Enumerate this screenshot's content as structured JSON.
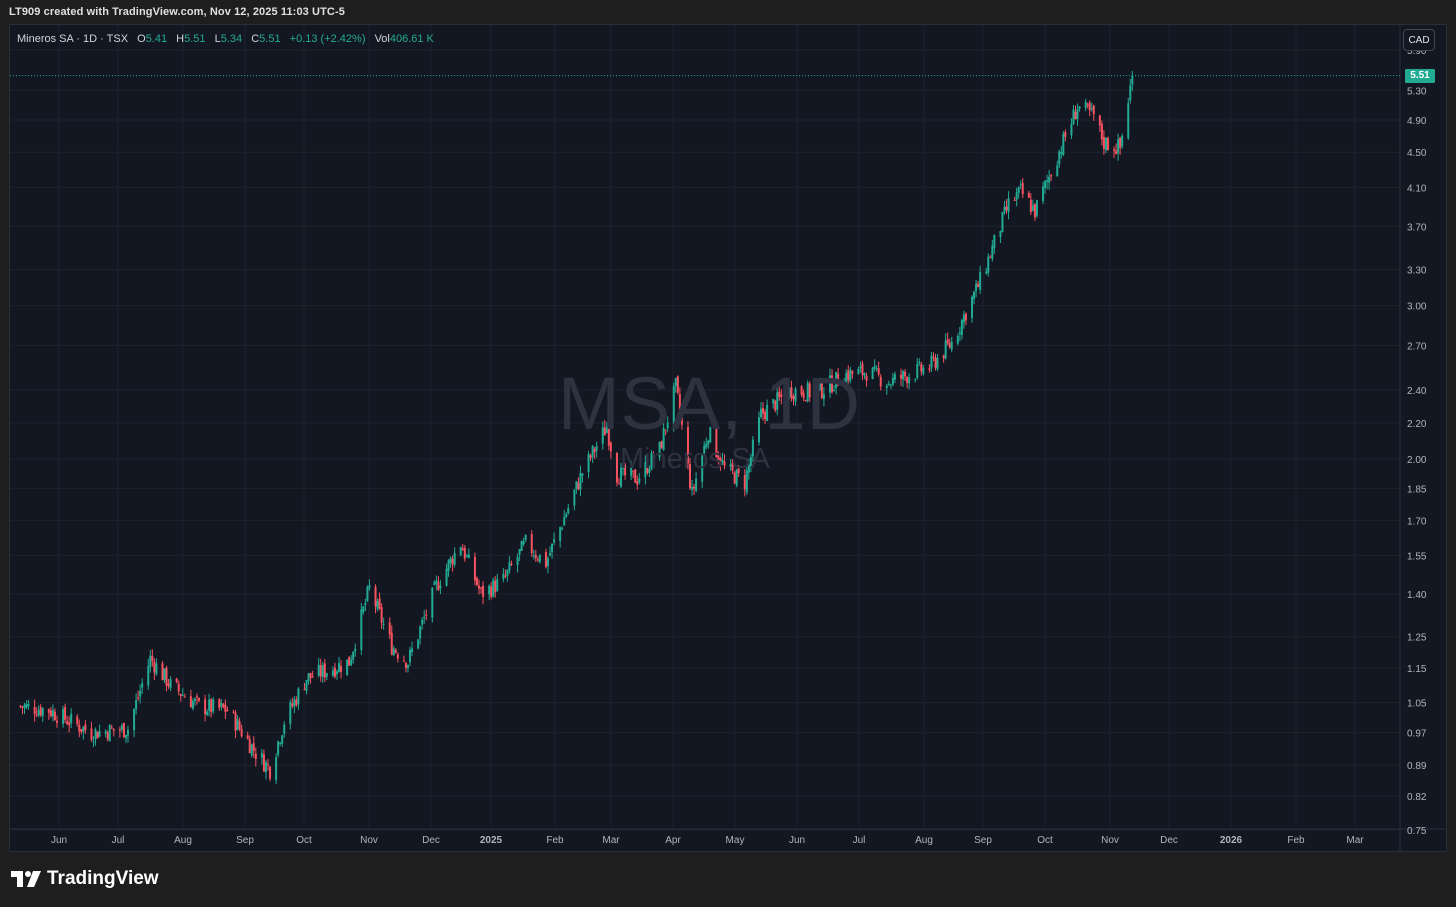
{
  "caption": "LT909 created with TradingView.com, Nov 12, 2025 11:03 UTC-5",
  "legend": {
    "symbol": "Mineros SA · 1D · TSX",
    "open_label": "O",
    "open": "5.41",
    "high_label": "H",
    "high": "5.51",
    "low_label": "L",
    "low": "5.34",
    "close_label": "C",
    "close": "5.51",
    "change": "+0.13 (+2.42%)",
    "vol_label": "Vol",
    "vol": "406.61 K"
  },
  "currency": "CAD",
  "watermark": {
    "symbol": "MSA, 1D",
    "name": "Mineros SA"
  },
  "brand": "TradingView",
  "colors": {
    "up": "#22ab94",
    "down": "#f7525f",
    "background": "#131722",
    "grid": "#1e222d"
  },
  "chart_data": {
    "type": "candlestick",
    "scale": "log",
    "last_price": "5.51",
    "ylim": [
      0.74,
      6.2
    ],
    "y_ticks": [
      "5.90",
      "5.30",
      "4.90",
      "4.50",
      "4.10",
      "3.70",
      "3.30",
      "3.00",
      "2.70",
      "2.40",
      "2.20",
      "2.00",
      "1.85",
      "1.70",
      "1.55",
      "1.40",
      "1.25",
      "1.15",
      "1.05",
      "0.97",
      "0.89",
      "0.82",
      "0.75"
    ],
    "x_ticks": [
      "Jun",
      "Jul",
      "Aug",
      "Sep",
      "Oct",
      "Nov",
      "Dec",
      "2025",
      "Feb",
      "Mar",
      "Apr",
      "May",
      "Jun",
      "Jul",
      "Aug",
      "Sep",
      "Oct",
      "Nov",
      "Dec",
      "2026",
      "Feb",
      "Mar"
    ],
    "x_tick_bold": [
      "2025",
      "2026"
    ],
    "x_start": "2024-05-13",
    "anchors": [
      [
        "2024-05-13",
        1.04
      ],
      [
        "2024-05-27",
        1.03
      ],
      [
        "2024-06-17",
        0.97
      ],
      [
        "2024-07-05",
        0.98
      ],
      [
        "2024-07-16",
        1.18
      ],
      [
        "2024-07-26",
        1.1
      ],
      [
        "2024-08-09",
        1.04
      ],
      [
        "2024-08-23",
        1.03
      ],
      [
        "2024-09-06",
        0.92
      ],
      [
        "2024-09-13",
        0.88
      ],
      [
        "2024-09-20",
        1.0
      ],
      [
        "2024-10-01",
        1.12
      ],
      [
        "2024-10-22",
        1.17
      ],
      [
        "2024-11-01",
        1.42
      ],
      [
        "2024-11-12",
        1.22
      ],
      [
        "2024-11-20",
        1.17
      ],
      [
        "2024-12-04",
        1.43
      ],
      [
        "2024-12-16",
        1.6
      ],
      [
        "2024-12-26",
        1.4
      ],
      [
        "2025-01-06",
        1.45
      ],
      [
        "2025-01-17",
        1.6
      ],
      [
        "2025-01-27",
        1.52
      ],
      [
        "2025-02-14",
        1.93
      ],
      [
        "2025-02-26",
        2.18
      ],
      [
        "2025-03-03",
        1.92
      ],
      [
        "2025-03-13",
        1.9
      ],
      [
        "2025-03-24",
        2.05
      ],
      [
        "2025-04-01",
        2.42
      ],
      [
        "2025-04-09",
        1.82
      ],
      [
        "2025-04-17",
        2.15
      ],
      [
        "2025-04-25",
        1.95
      ],
      [
        "2025-05-05",
        1.88
      ],
      [
        "2025-05-13",
        2.25
      ],
      [
        "2025-05-28",
        2.4
      ],
      [
        "2025-06-09",
        2.38
      ],
      [
        "2025-06-24",
        2.5
      ],
      [
        "2025-07-04",
        2.52
      ],
      [
        "2025-07-15",
        2.45
      ],
      [
        "2025-08-04",
        2.55
      ],
      [
        "2025-08-15",
        2.72
      ],
      [
        "2025-08-29",
        3.2
      ],
      [
        "2025-09-12",
        3.92
      ],
      [
        "2025-09-18",
        4.05
      ],
      [
        "2025-09-25",
        3.85
      ],
      [
        "2025-10-06",
        4.45
      ],
      [
        "2025-10-16",
        5.08
      ],
      [
        "2025-10-24",
        4.95
      ],
      [
        "2025-10-29",
        4.62
      ],
      [
        "2025-11-06",
        4.55
      ],
      [
        "2025-11-12",
        5.51
      ]
    ],
    "series_name": "Mineros SA"
  }
}
